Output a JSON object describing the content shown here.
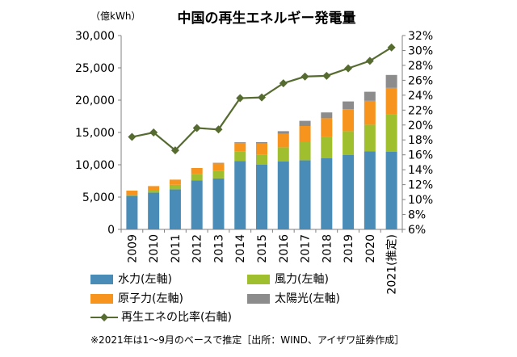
{
  "chart_data": {
    "type": "bar",
    "title": "中国の再生エネルギー発電量",
    "y_unit_label": "（億kWh）",
    "categories": [
      "2009",
      "2010",
      "2011",
      "2012",
      "2013",
      "2014",
      "2015",
      "2016",
      "2017",
      "2018",
      "2019",
      "2020",
      "2021(推定)"
    ],
    "ylim": [
      0,
      30000
    ],
    "yticks": [
      "0",
      "5,000",
      "10,000",
      "15,000",
      "20,000",
      "25,000",
      "30,000"
    ],
    "y2lim": [
      6,
      32
    ],
    "y2ticks": [
      "6%",
      "8%",
      "10%",
      "12%",
      "14%",
      "16%",
      "18%",
      "20%",
      "22%",
      "24%",
      "26%",
      "28%",
      "30%",
      "32%"
    ],
    "grid": false,
    "series": [
      {
        "name": "水力(左軸)",
        "kind": "bar",
        "color": "#4A8CB8",
        "values": [
          5200,
          5700,
          6200,
          7600,
          7900,
          10600,
          10000,
          10500,
          10700,
          11000,
          11500,
          12100,
          12000
        ]
      },
      {
        "name": "風力(左軸)",
        "kind": "bar",
        "color": "#9FBF2F",
        "values": [
          100,
          300,
          700,
          1000,
          1200,
          1500,
          1600,
          2200,
          2800,
          3300,
          3700,
          4100,
          5800
        ]
      },
      {
        "name": "原子力(左軸)",
        "kind": "bar",
        "color": "#F7941D",
        "values": [
          700,
          700,
          800,
          900,
          1100,
          1300,
          1700,
          2100,
          2500,
          2900,
          3400,
          3700,
          4100
        ]
      },
      {
        "name": "太陽光(左軸)",
        "kind": "bar",
        "color": "#8C8C8C",
        "values": [
          0,
          0,
          0,
          0,
          100,
          100,
          200,
          400,
          800,
          900,
          1200,
          1400,
          2000
        ]
      },
      {
        "name": "再生エネの比率(右軸)",
        "kind": "line",
        "axis": "right",
        "color": "#556B2F",
        "values": [
          18.4,
          19.0,
          16.6,
          19.6,
          19.4,
          23.6,
          23.7,
          25.6,
          26.5,
          26.6,
          27.6,
          28.6,
          30.4
        ]
      }
    ],
    "legend_position": "bottom"
  },
  "footnote": "※2021年は1〜9月のベースで推定［出所：WIND、アイザワ証券作成］"
}
